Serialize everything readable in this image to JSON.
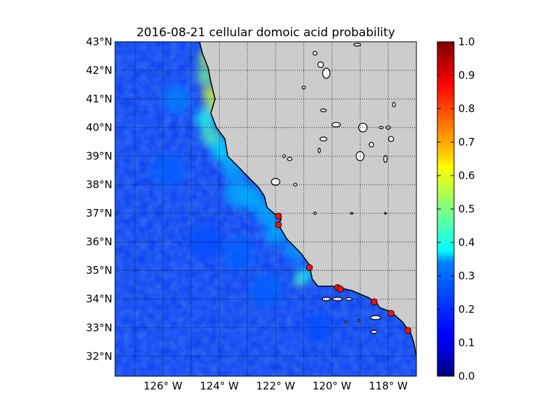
{
  "chart_data": {
    "type": "heatmap",
    "title": "2016-08-21 cellular domoic acid probability",
    "xlim": [
      -127.7,
      -117.0
    ],
    "ylim": [
      31.3,
      43.0
    ],
    "xticks": [
      {
        "value": -126,
        "label": "126° W"
      },
      {
        "value": -124,
        "label": "124° W"
      },
      {
        "value": -122,
        "label": "122° W"
      },
      {
        "value": -120,
        "label": "120° W"
      },
      {
        "value": -118,
        "label": "118° W"
      }
    ],
    "yticks": [
      {
        "value": 32,
        "label": "32°N"
      },
      {
        "value": 33,
        "label": "33°N"
      },
      {
        "value": 34,
        "label": "34°N"
      },
      {
        "value": 35,
        "label": "35°N"
      },
      {
        "value": 36,
        "label": "36°N"
      },
      {
        "value": 37,
        "label": "37°N"
      },
      {
        "value": 38,
        "label": "38°N"
      },
      {
        "value": 39,
        "label": "39°N"
      },
      {
        "value": 40,
        "label": "40°N"
      },
      {
        "value": 41,
        "label": "41°N"
      },
      {
        "value": 42,
        "label": "42°N"
      },
      {
        "value": 43,
        "label": "43°N"
      }
    ],
    "grid": true,
    "colorbar": {
      "range": [
        0.0,
        1.0
      ],
      "colormap": "jet",
      "ticks": [
        "0.0",
        "0.1",
        "0.2",
        "0.3",
        "0.4",
        "0.5",
        "0.6",
        "0.7",
        "0.8",
        "0.9",
        "1.0"
      ]
    },
    "sites": [
      {
        "lon": -121.9,
        "lat": 36.9
      },
      {
        "lon": -121.9,
        "lat": 36.6
      },
      {
        "lon": -120.8,
        "lat": 35.1
      },
      {
        "lon": -119.8,
        "lat": 34.4
      },
      {
        "lon": -119.7,
        "lat": 34.35
      },
      {
        "lon": -118.5,
        "lat": 33.9
      },
      {
        "lon": -117.9,
        "lat": 33.5
      },
      {
        "lon": -117.3,
        "lat": 32.9
      }
    ],
    "coastline": [
      [
        -124.7,
        43.0
      ],
      [
        -124.6,
        42.6
      ],
      [
        -124.4,
        42.1
      ],
      [
        -124.3,
        41.6
      ],
      [
        -124.15,
        41.0
      ],
      [
        -124.3,
        40.5
      ],
      [
        -124.1,
        40.0
      ],
      [
        -123.8,
        39.6
      ],
      [
        -123.7,
        39.0
      ],
      [
        -123.3,
        38.6
      ],
      [
        -122.9,
        38.2
      ],
      [
        -122.6,
        37.9
      ],
      [
        -122.4,
        37.6
      ],
      [
        -122.3,
        37.2
      ],
      [
        -122.0,
        36.95
      ],
      [
        -121.8,
        36.8
      ],
      [
        -121.9,
        36.6
      ],
      [
        -121.6,
        36.1
      ],
      [
        -121.1,
        35.6
      ],
      [
        -120.8,
        35.2
      ],
      [
        -120.7,
        34.7
      ],
      [
        -120.5,
        34.45
      ],
      [
        -120.0,
        34.45
      ],
      [
        -119.3,
        34.3
      ],
      [
        -118.7,
        34.05
      ],
      [
        -118.4,
        33.85
      ],
      [
        -118.3,
        33.7
      ],
      [
        -117.9,
        33.55
      ],
      [
        -117.5,
        33.2
      ],
      [
        -117.2,
        32.8
      ],
      [
        -117.1,
        32.5
      ],
      [
        -117.0,
        32.0
      ]
    ],
    "lakes": [
      {
        "lon": -122.0,
        "lat": 38.1,
        "rx": 0.15,
        "ry": 0.12
      },
      {
        "lon": -121.3,
        "lat": 38.0,
        "rx": 0.06,
        "ry": 0.05
      },
      {
        "lon": -121.5,
        "lat": 38.9,
        "rx": 0.08,
        "ry": 0.06
      },
      {
        "lon": -121.7,
        "lat": 39.0,
        "rx": 0.05,
        "ry": 0.05
      },
      {
        "lon": -121.0,
        "lat": 41.4,
        "rx": 0.06,
        "ry": 0.05
      },
      {
        "lon": -120.6,
        "lat": 42.6,
        "rx": 0.07,
        "ry": 0.07
      },
      {
        "lon": -120.4,
        "lat": 42.2,
        "rx": 0.1,
        "ry": 0.1
      },
      {
        "lon": -120.2,
        "lat": 41.9,
        "rx": 0.13,
        "ry": 0.18
      },
      {
        "lon": -120.3,
        "lat": 40.6,
        "rx": 0.1,
        "ry": 0.05
      },
      {
        "lon": -119.85,
        "lat": 40.1,
        "rx": 0.15,
        "ry": 0.08
      },
      {
        "lon": -119.1,
        "lat": 42.9,
        "rx": 0.12,
        "ry": 0.05
      },
      {
        "lon": -118.9,
        "lat": 40.0,
        "rx": 0.15,
        "ry": 0.15
      },
      {
        "lon": -119.0,
        "lat": 39.0,
        "rx": 0.14,
        "ry": 0.16
      },
      {
        "lon": -118.6,
        "lat": 39.4,
        "rx": 0.08,
        "ry": 0.08
      },
      {
        "lon": -118.1,
        "lat": 38.9,
        "rx": 0.06,
        "ry": 0.12
      },
      {
        "lon": -117.8,
        "lat": 40.8,
        "rx": 0.05,
        "ry": 0.08
      },
      {
        "lon": -117.9,
        "lat": 39.6,
        "rx": 0.09,
        "ry": 0.09
      },
      {
        "lon": -118.25,
        "lat": 40.0,
        "rx": 0.07,
        "ry": 0.04
      },
      {
        "lon": -120.3,
        "lat": 39.6,
        "rx": 0.12,
        "ry": 0.07
      },
      {
        "lon": -118.0,
        "lat": 40.0,
        "rx": 0.07,
        "ry": 0.06
      },
      {
        "lon": -119.3,
        "lat": 37.0,
        "rx": 0.05,
        "ry": 0.03
      },
      {
        "lon": -118.1,
        "lat": 37.0,
        "rx": 0.03,
        "ry": 0.03
      },
      {
        "lon": -120.6,
        "lat": 37.0,
        "rx": 0.05,
        "ry": 0.04
      },
      {
        "lon": -120.45,
        "lat": 39.2,
        "rx": 0.04,
        "ry": 0.08
      }
    ],
    "islands": [
      {
        "lon": -120.2,
        "lat": 34.0,
        "rx": 0.15,
        "ry": 0.06
      },
      {
        "lon": -119.8,
        "lat": 34.0,
        "rx": 0.18,
        "ry": 0.06
      },
      {
        "lon": -119.4,
        "lat": 34.0,
        "rx": 0.12,
        "ry": 0.05
      },
      {
        "lon": -118.45,
        "lat": 33.35,
        "rx": 0.18,
        "ry": 0.07
      },
      {
        "lon": -118.5,
        "lat": 32.85,
        "rx": 0.12,
        "ry": 0.05
      },
      {
        "lon": -119.05,
        "lat": 33.25,
        "rx": 0.04,
        "ry": 0.03
      },
      {
        "lon": -119.5,
        "lat": 33.2,
        "rx": 0.05,
        "ry": 0.03
      }
    ],
    "features": [
      {
        "lon": -124.45,
        "lat": 42.4,
        "v": 0.55,
        "r": 0.3
      },
      {
        "lon": -124.5,
        "lat": 41.8,
        "v": 0.5,
        "r": 0.3
      },
      {
        "lon": -124.3,
        "lat": 41.2,
        "v": 0.6,
        "r": 0.3
      },
      {
        "lon": -124.2,
        "lat": 40.8,
        "v": 0.55,
        "r": 0.3
      },
      {
        "lon": -124.5,
        "lat": 40.3,
        "v": 0.4,
        "r": 0.35
      },
      {
        "lon": -124.3,
        "lat": 39.7,
        "v": 0.45,
        "r": 0.35
      },
      {
        "lon": -123.9,
        "lat": 39.2,
        "v": 0.35,
        "r": 0.4
      },
      {
        "lon": -123.5,
        "lat": 38.6,
        "v": 0.3,
        "r": 0.4
      },
      {
        "lon": -123.3,
        "lat": 37.7,
        "v": 0.3,
        "r": 0.5
      },
      {
        "lon": -122.8,
        "lat": 37.5,
        "v": 0.3,
        "r": 0.4
      },
      {
        "lon": -122.3,
        "lat": 37.0,
        "v": 0.3,
        "r": 0.4
      },
      {
        "lon": -122.0,
        "lat": 36.3,
        "v": 0.3,
        "r": 0.4
      },
      {
        "lon": -121.3,
        "lat": 35.7,
        "v": 0.28,
        "r": 0.4
      },
      {
        "lon": -121.1,
        "lat": 34.7,
        "v": 0.45,
        "r": 0.25
      },
      {
        "lon": -120.9,
        "lat": 34.9,
        "v": 0.35,
        "r": 0.25
      },
      {
        "lon": -123.3,
        "lat": 35.6,
        "v": 0.22,
        "r": 0.6
      },
      {
        "lon": -122.3,
        "lat": 34.3,
        "v": 0.22,
        "r": 0.6
      },
      {
        "lon": -125.5,
        "lat": 41.0,
        "v": 0.25,
        "r": 0.5
      },
      {
        "lon": -125.8,
        "lat": 38.5,
        "v": 0.22,
        "r": 0.6
      },
      {
        "lon": -124.5,
        "lat": 36.0,
        "v": 0.2,
        "r": 0.6
      },
      {
        "lon": -120.5,
        "lat": 33.0,
        "v": 0.2,
        "r": 0.5
      }
    ]
  }
}
